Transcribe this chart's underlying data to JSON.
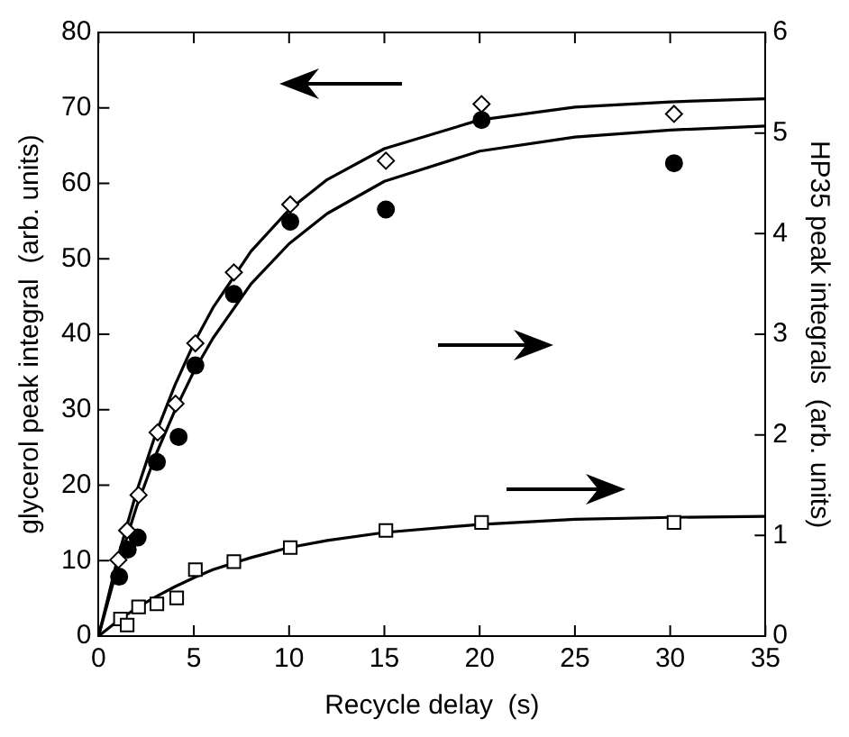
{
  "chart_data": {
    "type": "scatter",
    "xlabel": "Recycle delay  (s)",
    "ylabel": "glycerol peak integral  (arb. units)",
    "y2label": "HP35 peak integrals  (arb. units)",
    "xlim": [
      0,
      35
    ],
    "xticks": [
      0,
      5,
      10,
      15,
      20,
      25,
      30,
      35
    ],
    "ylim": [
      0,
      80
    ],
    "yticks": [
      0,
      10,
      20,
      30,
      40,
      50,
      60,
      70,
      80
    ],
    "y2lim": [
      0,
      6
    ],
    "y2ticks": [
      0,
      1,
      2,
      3,
      4,
      5,
      6
    ],
    "legend": false,
    "series": [
      {
        "type": "scatter",
        "marker": "diamond",
        "color": "#000000",
        "x": [
          1.04,
          1.5,
          2.1,
          3.1,
          4.04,
          5.08,
          7.1,
          10.06,
          15.08,
          20.1,
          30.2
        ],
        "values": [
          10.1,
          14,
          18.7,
          27,
          30.8,
          38.8,
          48.2,
          57.2,
          63,
          70.5,
          69.2
        ]
      },
      {
        "type": "scatter",
        "marker": "circle",
        "axis": "y2",
        "color": "#000000",
        "x": [
          1.08,
          1.53,
          2.05,
          3.06,
          4.2,
          5.08,
          7.1,
          10.06,
          15.08,
          20.1,
          30.2
        ],
        "values": [
          0.59,
          0.86,
          0.98,
          1.73,
          1.98,
          2.69,
          3.4,
          4.12,
          4.24,
          5.13,
          4.7
        ]
      },
      {
        "type": "scatter",
        "marker": "square",
        "axis": "y2",
        "color": "#000000",
        "x": [
          1.15,
          1.5,
          2.1,
          3.06,
          4.1,
          5.08,
          7.1,
          10.06,
          15.08,
          20.1,
          30.2
        ],
        "values": [
          0.17,
          0.11,
          0.29,
          0.32,
          0.38,
          0.66,
          0.74,
          0.88,
          1.05,
          1.13,
          1.13
        ]
      },
      {
        "type": "line",
        "marker": "none",
        "color": "#000000",
        "x": [
          0,
          1,
          2,
          3,
          4,
          5,
          6,
          8,
          10,
          12,
          15,
          20,
          25,
          30,
          35
        ],
        "values": [
          0,
          10.3,
          19.2,
          26.8,
          33.2,
          38.8,
          43.5,
          51.0,
          56.5,
          60.5,
          64.6,
          68.4,
          70.1,
          70.8,
          71.2
        ]
      },
      {
        "type": "line",
        "marker": "none",
        "axis": "y2",
        "color": "#000000",
        "x": [
          0,
          1,
          2,
          3,
          4,
          5,
          6,
          8,
          10,
          12,
          15,
          20,
          25,
          30,
          35
        ],
        "values": [
          0,
          0.69,
          1.29,
          1.8,
          2.24,
          2.63,
          2.96,
          3.5,
          3.9,
          4.2,
          4.52,
          4.82,
          4.96,
          5.03,
          5.07
        ]
      },
      {
        "type": "line",
        "marker": "none",
        "axis": "y2",
        "color": "#000000",
        "x": [
          0,
          1,
          2,
          3,
          4,
          5,
          6,
          8,
          10,
          12,
          15,
          20,
          25,
          30,
          35
        ],
        "values": [
          0,
          0.15,
          0.28,
          0.39,
          0.49,
          0.58,
          0.66,
          0.78,
          0.88,
          0.95,
          1.03,
          1.11,
          1.16,
          1.18,
          1.19
        ]
      }
    ]
  }
}
